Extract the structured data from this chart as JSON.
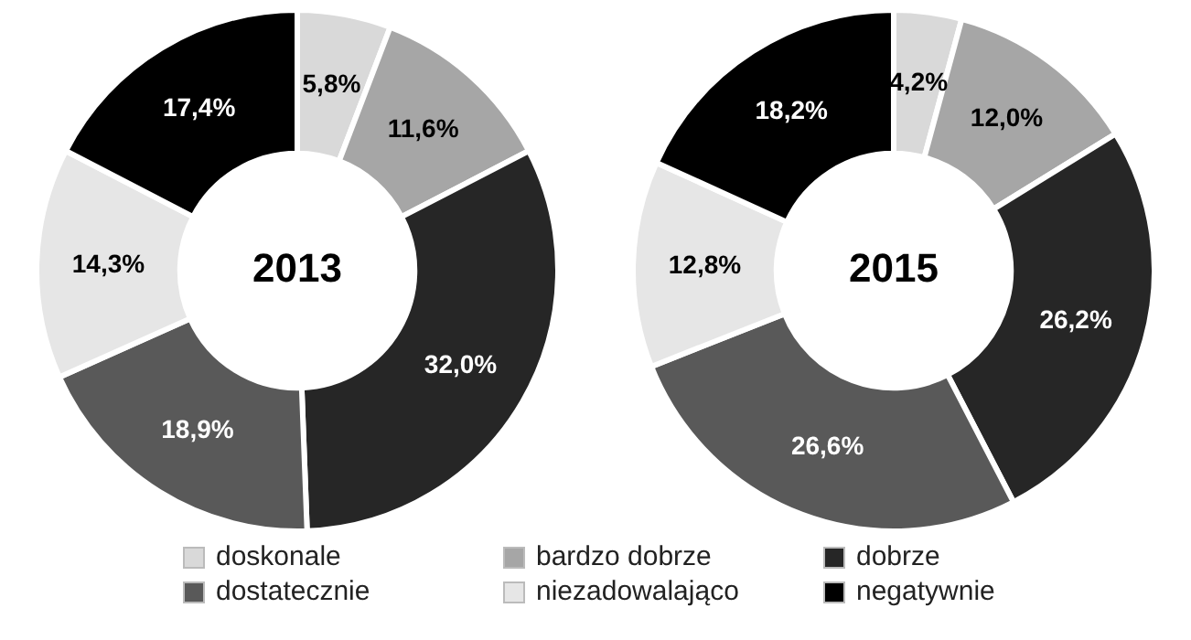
{
  "chart_data": [
    {
      "type": "donut",
      "title": "2013",
      "categories": [
        "doskonale",
        "bardzo dobrze",
        "dobrze",
        "dostatecznie",
        "niezadowalająco",
        "negatywnie"
      ],
      "values": [
        5.8,
        11.6,
        32.0,
        18.9,
        14.3,
        17.4
      ],
      "value_labels": [
        "5,8%",
        "11,6%",
        "32,0%",
        "18,9%",
        "14,3%",
        "17,4%"
      ],
      "colors": [
        "#d9d9d9",
        "#a6a6a6",
        "#262626",
        "#595959",
        "#e6e6e6",
        "#000000"
      ],
      "legend": "bottom"
    },
    {
      "type": "donut",
      "title": "2015",
      "categories": [
        null,
        null,
        null,
        null,
        null,
        null
      ],
      "values": [
        4.2,
        12.0,
        26.2,
        26.6,
        12.8,
        18.2
      ],
      "value_labels": [
        "4,2%",
        "12,0%",
        "26,2%",
        "26,6%",
        "12,8%",
        "18,2%"
      ],
      "colors": [
        "#d9d9d9",
        "#a6a6a6",
        "#262626",
        "#595959",
        "#e6e6e6",
        "#000000"
      ]
    }
  ]
}
